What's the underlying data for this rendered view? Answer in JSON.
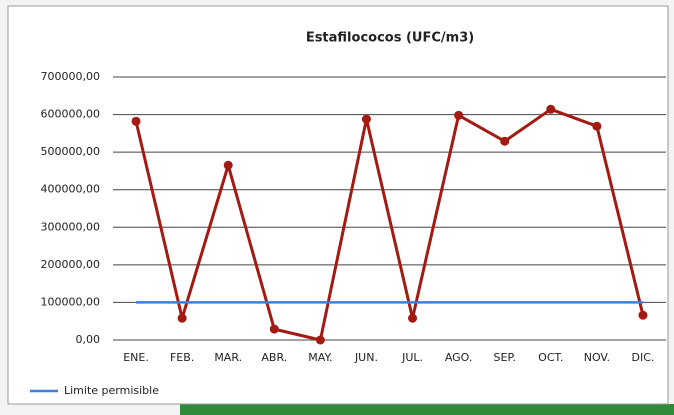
{
  "chart_data": {
    "type": "line",
    "title": "Estafilococos (UFC/m3)",
    "categories": [
      "ENE.",
      "FEB.",
      "MAR.",
      "ABR.",
      "MAY.",
      "JUN.",
      "JUL.",
      "AGO.",
      "SEP.",
      "OCT.",
      "NOV.",
      "DIC."
    ],
    "series": [
      {
        "color": "#a31a12",
        "values": [
          582000,
          58000,
          465000,
          29000,
          0,
          588000,
          58000,
          598000,
          529000,
          614000,
          569000,
          66000
        ]
      },
      {
        "name": "Limite permisible",
        "color": "#3a7fdc",
        "values": [
          100000,
          100000,
          100000,
          100000,
          100000,
          100000,
          100000,
          100000,
          100000,
          100000,
          100000,
          100000
        ]
      }
    ],
    "ylim": [
      0,
      700000
    ],
    "yticks": [
      {
        "value": 0,
        "label": "0,00"
      },
      {
        "value": 100000,
        "label": "100000,00"
      },
      {
        "value": 200000,
        "label": "200000,00"
      },
      {
        "value": 300000,
        "label": "300000,00"
      },
      {
        "value": 400000,
        "label": "400000,00"
      },
      {
        "value": 500000,
        "label": "500000,00"
      },
      {
        "value": 600000,
        "label": "600000,00"
      },
      {
        "value": 700000,
        "label": "700000,00"
      }
    ],
    "grid": true,
    "legend": "bottom-left"
  }
}
